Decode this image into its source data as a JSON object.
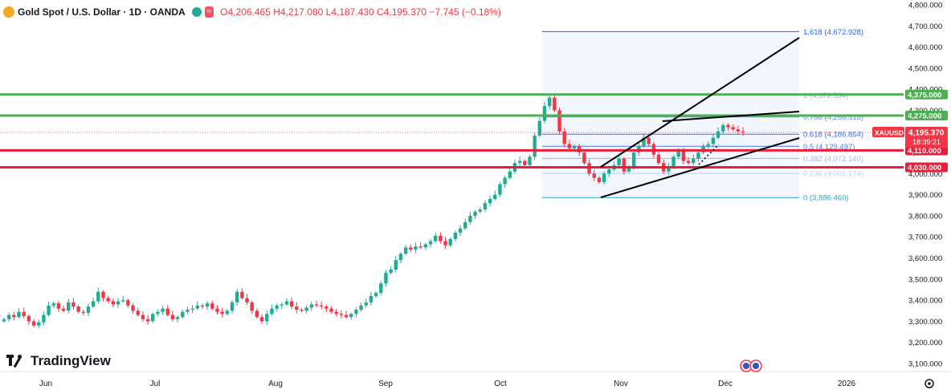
{
  "header": {
    "title": "Gold Spot / U.S. Dollar · 1D · OANDA",
    "open": "O4,206.465",
    "high": "H4,217.080",
    "low": "L4,187.430",
    "close": "C4,195.370",
    "change": "−7.745 (−0.18%)",
    "badge": "≈"
  },
  "branding": {
    "logo_text": "TradingView"
  },
  "price_label": {
    "symbol": "XAUUSD",
    "price": "4,195.370",
    "countdown": "18:39:21"
  },
  "colors": {
    "up": "#22ab94",
    "down": "#f23645",
    "green_level": "#4caf50",
    "red_level": "#e91e3c",
    "fib": "#2962ff",
    "trend": "#000000"
  },
  "chart_data": {
    "type": "candlestick",
    "title": "Gold Spot / U.S. Dollar · 1D · OANDA",
    "ylim": [
      3080,
      4820
    ],
    "y_ticks": [
      "4,800.000",
      "4,700.000",
      "4,600.000",
      "4,500.000",
      "4,400.000",
      "4,300.000",
      "4,200.000",
      "4,100.000",
      "4,000.000",
      "3,900.000",
      "3,800.000",
      "3,700.000",
      "3,600.000",
      "3,500.000",
      "3,400.000",
      "3,300.000",
      "3,200.000",
      "3,100.000"
    ],
    "x_ticks": [
      "Jun",
      "Jul",
      "Aug",
      "Sep",
      "Oct",
      "Nov",
      "Dec",
      "2026"
    ],
    "grid": false,
    "close_series": [
      3310,
      3330,
      3320,
      3345,
      3325,
      3300,
      3280,
      3295,
      3330,
      3375,
      3385,
      3360,
      3350,
      3390,
      3370,
      3345,
      3340,
      3370,
      3395,
      3440,
      3410,
      3395,
      3380,
      3395,
      3400,
      3375,
      3350,
      3330,
      3310,
      3300,
      3335,
      3345,
      3360,
      3330,
      3310,
      3320,
      3345,
      3355,
      3360,
      3375,
      3370,
      3385,
      3360,
      3345,
      3335,
      3350,
      3390,
      3440,
      3410,
      3390,
      3350,
      3320,
      3300,
      3335,
      3360,
      3375,
      3380,
      3395,
      3370,
      3355,
      3350,
      3365,
      3380,
      3375,
      3370,
      3360,
      3345,
      3335,
      3330,
      3320,
      3335,
      3355,
      3375,
      3390,
      3420,
      3435,
      3480,
      3530,
      3545,
      3590,
      3620,
      3650,
      3640,
      3655,
      3650,
      3665,
      3680,
      3705,
      3680,
      3660,
      3690,
      3720,
      3740,
      3770,
      3800,
      3820,
      3830,
      3860,
      3880,
      3900,
      3950,
      3980,
      4010,
      4050,
      4060,
      4040,
      4080,
      4180,
      4250,
      4320,
      4360,
      4300,
      4200,
      4140,
      4120,
      4130,
      4100,
      4050,
      4000,
      3980,
      3960,
      4000,
      4020,
      4040,
      4070,
      4010,
      4030,
      4100,
      4130,
      4170,
      4140,
      4090,
      4050,
      4010,
      4030,
      4080,
      4110,
      4060,
      4050,
      4070,
      4100,
      4130,
      4140,
      4170,
      4200,
      4230,
      4220,
      4210,
      4200,
      4195
    ],
    "levels": [
      {
        "value": 4375,
        "label": "4,375.000",
        "color": "#4caf50"
      },
      {
        "value": 4275,
        "label": "4,275.000",
        "color": "#4caf50"
      },
      {
        "value": 4110,
        "label": "4,110.000",
        "color": "#e91e3c"
      },
      {
        "value": 4030,
        "label": "4,030.000",
        "color": "#e91e3c"
      }
    ],
    "fibonacci": [
      {
        "ratio": "1.618",
        "value": 4672.928,
        "label": "1.618 (4,672.928)"
      },
      {
        "ratio": "1",
        "value": 4372.534,
        "label": "1 (4,372.534)"
      },
      {
        "ratio": "0.786",
        "value": 4268.515,
        "label": "0.786 (4,268.515)"
      },
      {
        "ratio": "0.618",
        "value": 4186.854,
        "label": "0.618 (4,186.854)"
      },
      {
        "ratio": "0.5",
        "value": 4129.497,
        "label": "0.5 (4,129.497)"
      },
      {
        "ratio": "0.382",
        "value": 4072.14,
        "label": "0.382 (4,072.140)"
      },
      {
        "ratio": "0.236",
        "value": 4001.174,
        "label": "0.236 (4,001.174)"
      },
      {
        "ratio": "0",
        "value": 3886.46,
        "label": "0 (3,886.460)"
      }
    ],
    "last_price": 4195.37
  }
}
